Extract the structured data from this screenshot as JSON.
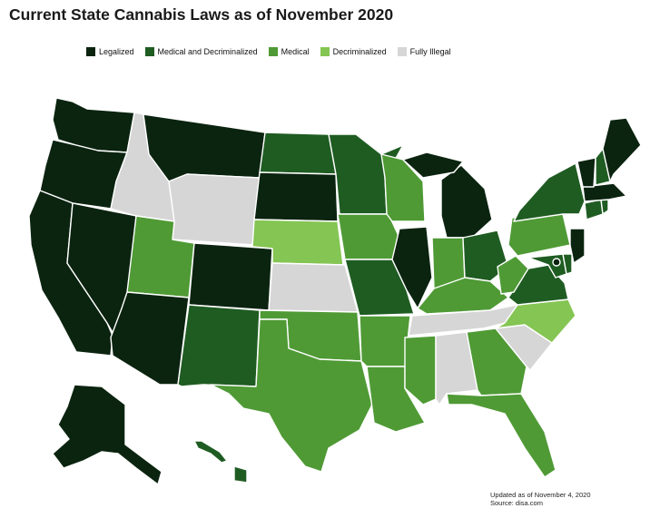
{
  "title": "Current State Cannabis Laws as of November 2020",
  "legend": [
    {
      "key": "legalized",
      "label": "Legalized",
      "color": "#0b2410"
    },
    {
      "key": "med_decrim",
      "label": "Medical and Decriminalized",
      "color": "#1f5c22"
    },
    {
      "key": "medical",
      "label": "Medical",
      "color": "#4f9a35"
    },
    {
      "key": "decrim",
      "label": "Decriminalized",
      "color": "#84c553"
    },
    {
      "key": "illegal",
      "label": "Fully Illegal",
      "color": "#d6d6d6"
    }
  ],
  "footnote": {
    "updated": "Updated as of November 4, 2020",
    "source": "Source: disa.com"
  },
  "states": {
    "WA": "legalized",
    "OR": "legalized",
    "CA": "legalized",
    "NV": "legalized",
    "ID": "illegal",
    "MT": "legalized",
    "WY": "illegal",
    "UT": "medical",
    "AZ": "legalized",
    "CO": "legalized",
    "NM": "med_decrim",
    "ND": "med_decrim",
    "SD": "legalized",
    "NE": "decrim",
    "KS": "illegal",
    "OK": "medical",
    "TX": "medical",
    "MN": "med_decrim",
    "IA": "medical",
    "MO": "med_decrim",
    "AR": "medical",
    "LA": "medical",
    "WI": "medical",
    "IL": "legalized",
    "MI": "legalized",
    "IN": "medical",
    "OH": "med_decrim",
    "KY": "medical",
    "TN": "illegal",
    "MS": "medical",
    "AL": "illegal",
    "GA": "medical",
    "FL": "medical",
    "SC": "illegal",
    "NC": "decrim",
    "VA": "med_decrim",
    "WV": "medical",
    "PA": "medical",
    "NY": "med_decrim",
    "VT": "legalized",
    "NH": "med_decrim",
    "ME": "legalized",
    "MA": "legalized",
    "NJ": "legalized",
    "MD": "med_decrim",
    "DE": "med_decrim",
    "CT": "med_decrim",
    "RI": "med_decrim",
    "DC": "legalized",
    "AK": "legalized",
    "HI": "med_decrim"
  }
}
